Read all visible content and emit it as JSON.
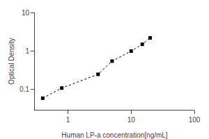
{
  "chart_data": {
    "type": "line",
    "xlabel": "Human LP-a concentration[ng/mL]",
    "ylabel": "Optical Density",
    "x": [
      0.4,
      0.8,
      3.0,
      5.0,
      10.0,
      15.0,
      20.0
    ],
    "values": [
      0.06,
      0.11,
      0.25,
      0.55,
      1.0,
      1.5,
      2.2
    ],
    "xlim": [
      0.3,
      100
    ],
    "ylim": [
      0.03,
      10
    ],
    "xticks": [
      1,
      10,
      100
    ],
    "yticks": [
      0.1,
      1,
      10
    ],
    "log": true,
    "grid": false,
    "color": "black",
    "marker": "square",
    "line_style": "dotted"
  }
}
